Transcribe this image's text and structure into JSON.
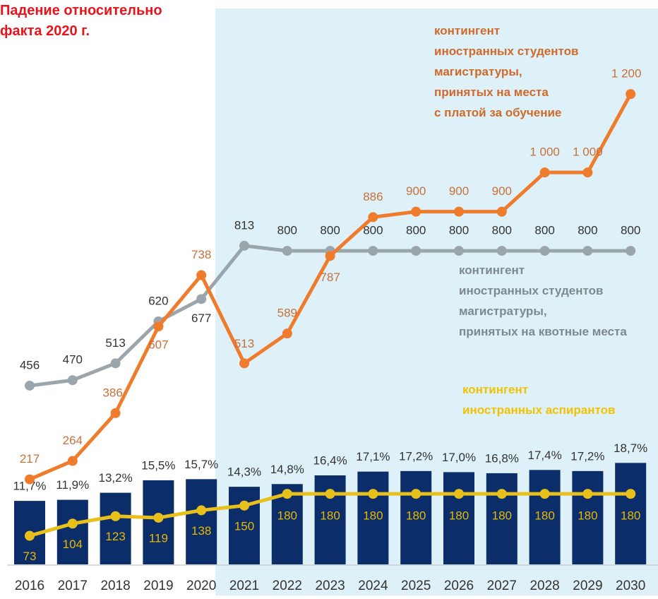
{
  "chart_data": {
    "type": "combo",
    "annotation": "Падение относительно\nфакта 2020 г.",
    "categories": [
      "2016",
      "2017",
      "2018",
      "2019",
      "2020",
      "2021",
      "2022",
      "2023",
      "2024",
      "2025",
      "2026",
      "2027",
      "2028",
      "2029",
      "2030"
    ],
    "ylim": [
      0,
      1440
    ],
    "y2lim": [
      0,
      104
    ],
    "series": [
      {
        "type": "bar",
        "axis": "y2",
        "color": "#0b2d69",
        "values": [
          11.7,
          11.9,
          13.2,
          15.5,
          15.7,
          14.3,
          14.8,
          16.4,
          17.1,
          17.2,
          17.0,
          16.8,
          17.4,
          17.2,
          18.7
        ],
        "value_labels": [
          "11,7%",
          "11,9%",
          "13,2%",
          "15,5%",
          "15,7%",
          "14,3%",
          "14,8%",
          "16,4%",
          "17,1%",
          "17,2%",
          "17,0%",
          "16,8%",
          "17,4%",
          "17,2%",
          "18,7%"
        ]
      },
      {
        "type": "line",
        "name": "контингент\nиностранных студентов\nмагистратуры,\nпринятых на квотные места",
        "color": "#9ba6ac",
        "label_color": "#333333",
        "name_color": "#7e898f",
        "values": [
          456,
          470,
          513,
          620,
          677,
          813,
          800,
          800,
          800,
          800,
          800,
          800,
          800,
          800,
          800
        ]
      },
      {
        "type": "line",
        "name": "контингент\nиностранных студентов\nмагистратуры,\nпринятых на места\nс платой за обучение",
        "color": "#ef7b2c",
        "label_color": "#c8703a",
        "name_color": "#d0692a",
        "values": [
          217,
          264,
          386,
          607,
          738,
          513,
          589,
          787,
          886,
          900,
          900,
          900,
          1000,
          1000,
          1200
        ],
        "value_labels": [
          "217",
          "264",
          "386",
          "607",
          "738",
          "513",
          "589",
          "787",
          "886",
          "900",
          "900",
          "900",
          "1 000",
          "1 000",
          "1 200"
        ]
      },
      {
        "type": "line",
        "name": "контингент\nиностранных аспирантов",
        "color": "#e8c01c",
        "label_color": "#e7b900",
        "name_color": "#f2c200",
        "values": [
          73,
          104,
          123,
          119,
          138,
          150,
          180,
          180,
          180,
          180,
          180,
          180,
          180,
          180,
          180
        ]
      }
    ]
  }
}
